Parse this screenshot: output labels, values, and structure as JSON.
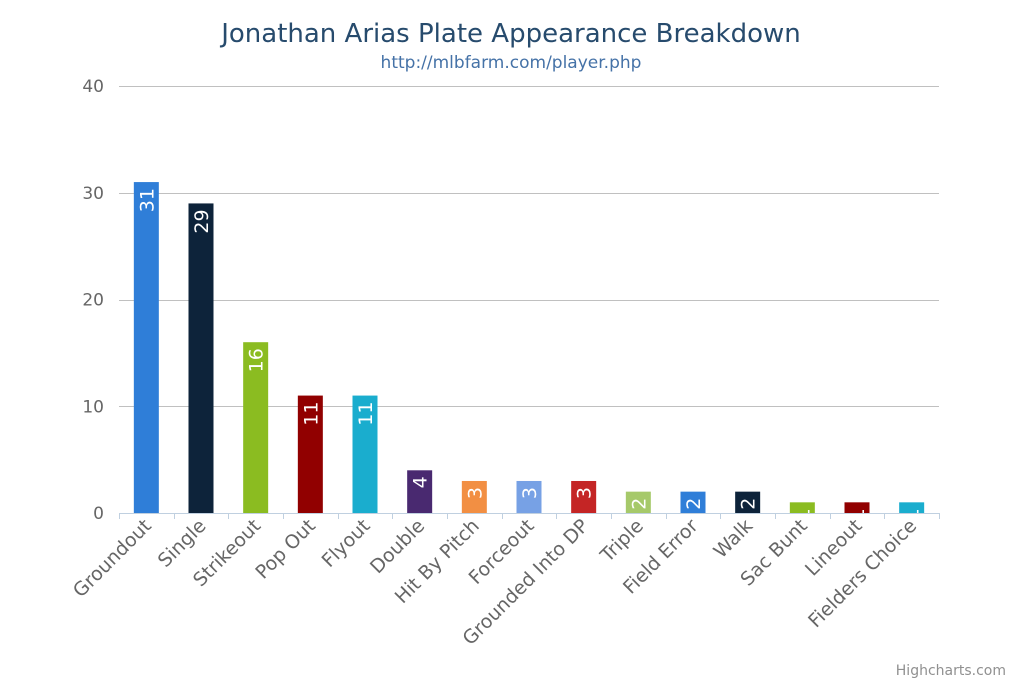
{
  "chart_data": {
    "type": "bar",
    "title": "Jonathan Arias Plate Appearance Breakdown",
    "subtitle": "http://mlbfarm.com/player.php",
    "categories": [
      "Groundout",
      "Single",
      "Strikeout",
      "Pop Out",
      "Flyout",
      "Double",
      "Hit By Pitch",
      "Forceout",
      "Grounded Into DP",
      "Triple",
      "Field Error",
      "Walk",
      "Sac Bunt",
      "Lineout",
      "Fielders Choice"
    ],
    "values": [
      31,
      29,
      16,
      11,
      11,
      4,
      3,
      3,
      3,
      2,
      2,
      2,
      1,
      1,
      1
    ],
    "colors": [
      "#2f7ed8",
      "#0d233a",
      "#8bbc21",
      "#910000",
      "#1aadce",
      "#492970",
      "#f28f43",
      "#77a1e5",
      "#c42525",
      "#a6c96a",
      "#2f7ed8",
      "#0d233a",
      "#8bbc21",
      "#910000",
      "#1aadce"
    ],
    "ylim": [
      0,
      40
    ],
    "yticks": [
      0,
      10,
      20,
      30,
      40
    ],
    "grid": true,
    "legend": "none",
    "credit": "Highcharts.com"
  }
}
